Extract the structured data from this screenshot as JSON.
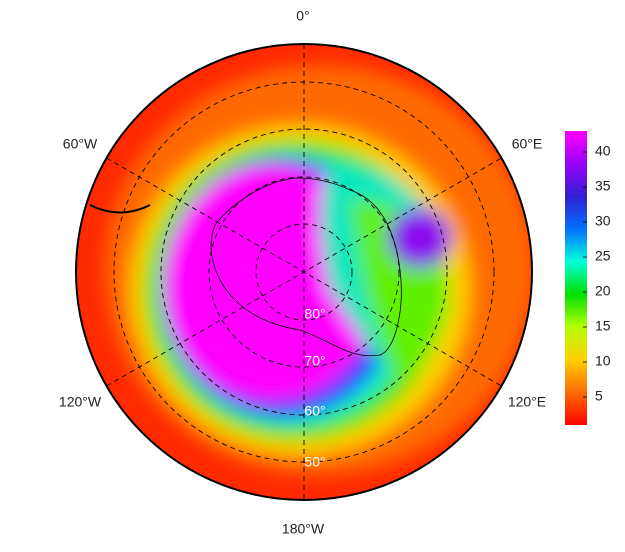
{
  "map": {
    "meridian_labels": [
      "0°",
      "60°E",
      "120°E",
      "180°W",
      "120°W",
      "60°W"
    ],
    "latitude_labels": [
      "80°",
      "70°",
      "60°",
      "50°"
    ],
    "colorbar": {
      "lim": [
        1,
        43
      ],
      "ticks": [
        5,
        10,
        15,
        20,
        25,
        30,
        35,
        40
      ],
      "colors": [
        "#ff0000",
        "#ff6a00",
        "#ffd000",
        "#b4ff00",
        "#00e000",
        "#00ffd8",
        "#0070ff",
        "#3020d0",
        "#9a00ff",
        "#ff00ff"
      ]
    }
  }
}
